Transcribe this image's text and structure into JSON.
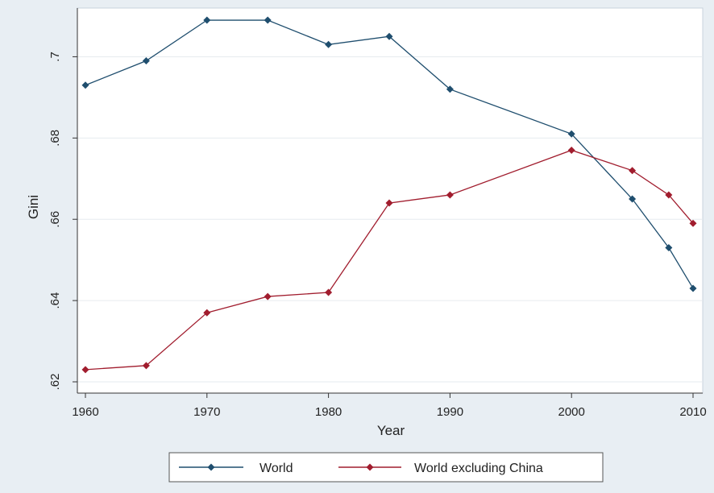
{
  "chart_data": {
    "type": "line",
    "title": "",
    "xlabel": "Year",
    "ylabel": "Gini",
    "xlim": [
      1960,
      2010
    ],
    "ylim": [
      0.62,
      0.71
    ],
    "x_ticks": [
      1960,
      1970,
      1980,
      1990,
      2000,
      2010
    ],
    "x_tick_labels": [
      "1960",
      "1970",
      "1980",
      "1990",
      "2000",
      "2010"
    ],
    "y_ticks": [
      0.62,
      0.64,
      0.66,
      0.68,
      0.7
    ],
    "y_tick_labels": [
      ".62",
      ".64",
      ".66",
      ".68",
      ".7"
    ],
    "grid": true,
    "legend_position": "bottom",
    "series": [
      {
        "name": "World",
        "color": "#1f4e6e",
        "marker": "diamond",
        "x": [
          1960,
          1965,
          1970,
          1975,
          1980,
          1985,
          1990,
          2000,
          2005,
          2008,
          2010
        ],
        "values": [
          0.693,
          0.699,
          0.709,
          0.709,
          0.703,
          0.705,
          0.692,
          0.681,
          0.665,
          0.653,
          0.643
        ]
      },
      {
        "name": "World excluding China",
        "color": "#a11d2e",
        "marker": "diamond",
        "x": [
          1960,
          1965,
          1970,
          1975,
          1980,
          1985,
          1990,
          2000,
          2005,
          2008,
          2010
        ],
        "values": [
          0.623,
          0.624,
          0.637,
          0.641,
          0.642,
          0.664,
          0.666,
          0.677,
          0.672,
          0.666,
          0.659
        ]
      }
    ]
  }
}
